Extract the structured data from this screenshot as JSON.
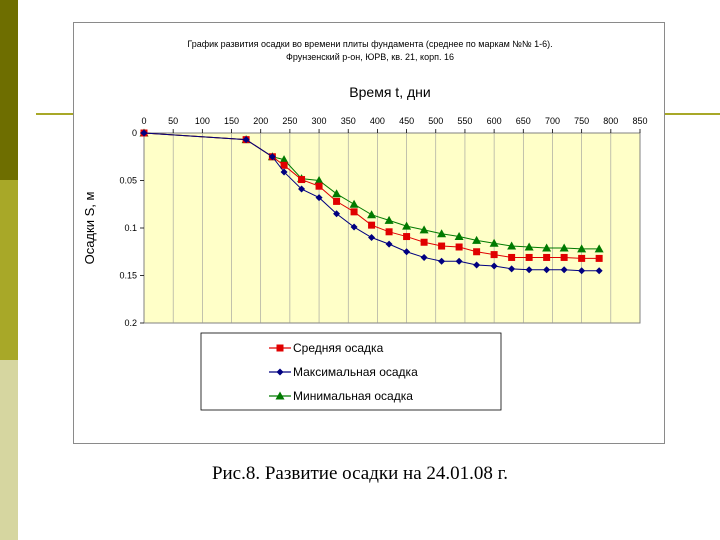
{
  "slide": {
    "caption": "Рис.8. Развитие осадки на 24.01.08 г.",
    "side_colors": [
      "#6e6e00",
      "#a8a828",
      "#d6d6a0",
      "#a8a828"
    ]
  },
  "chart_data": {
    "type": "line",
    "title_line1": "График развития осадки во времени плиты фундамента (среднее по маркам №№ 1-6).",
    "title_line2": "Фрунзенский р-он, ЮРВ, кв. 21, корп. 16",
    "xlabel": "Время t, дни",
    "ylabel": "Осадки S, м",
    "xlim": [
      0,
      850
    ],
    "ylim": [
      0,
      0.2
    ],
    "x_ticks": [
      "0",
      "50",
      "100",
      "150",
      "200",
      "250",
      "300",
      "350",
      "400",
      "450",
      "500",
      "550",
      "600",
      "650",
      "700",
      "750",
      "800",
      "850"
    ],
    "y_ticks": [
      "0",
      "0.05",
      "0.1",
      "0.15",
      "0.2"
    ],
    "y_inverted": true,
    "x_axis_position": "top",
    "plot_background": "#ffffc8",
    "grid": "vertical",
    "legend_position": "bottom",
    "series": [
      {
        "name": "Средняя осадка",
        "color": "#e00000",
        "marker": "square",
        "points": [
          [
            0,
            0
          ],
          [
            175,
            0.007
          ],
          [
            220,
            0.025
          ],
          [
            240,
            0.034
          ],
          [
            270,
            0.049
          ],
          [
            300,
            0.056
          ],
          [
            330,
            0.072
          ],
          [
            360,
            0.083
          ],
          [
            390,
            0.097
          ],
          [
            420,
            0.104
          ],
          [
            450,
            0.109
          ],
          [
            480,
            0.115
          ],
          [
            510,
            0.119
          ],
          [
            540,
            0.12
          ],
          [
            570,
            0.125
          ],
          [
            600,
            0.128
          ],
          [
            630,
            0.131
          ],
          [
            660,
            0.131
          ],
          [
            690,
            0.131
          ],
          [
            720,
            0.131
          ],
          [
            750,
            0.132
          ],
          [
            780,
            0.132
          ]
        ]
      },
      {
        "name": "Максимальная осадка",
        "color": "#000080",
        "marker": "diamond",
        "points": [
          [
            0,
            0
          ],
          [
            175,
            0.007
          ],
          [
            220,
            0.025
          ],
          [
            240,
            0.041
          ],
          [
            270,
            0.059
          ],
          [
            300,
            0.068
          ],
          [
            330,
            0.085
          ],
          [
            360,
            0.099
          ],
          [
            390,
            0.11
          ],
          [
            420,
            0.117
          ],
          [
            450,
            0.125
          ],
          [
            480,
            0.131
          ],
          [
            510,
            0.135
          ],
          [
            540,
            0.135
          ],
          [
            570,
            0.139
          ],
          [
            600,
            0.14
          ],
          [
            630,
            0.143
          ],
          [
            660,
            0.144
          ],
          [
            690,
            0.144
          ],
          [
            720,
            0.144
          ],
          [
            750,
            0.145
          ],
          [
            780,
            0.145
          ]
        ]
      },
      {
        "name": "Минимальная осадка",
        "color": "#007a00",
        "marker": "triangle",
        "points": [
          [
            0,
            0
          ],
          [
            175,
            0.007
          ],
          [
            220,
            0.025
          ],
          [
            240,
            0.028
          ],
          [
            270,
            0.048
          ],
          [
            300,
            0.05
          ],
          [
            330,
            0.064
          ],
          [
            360,
            0.075
          ],
          [
            390,
            0.086
          ],
          [
            420,
            0.092
          ],
          [
            450,
            0.098
          ],
          [
            480,
            0.102
          ],
          [
            510,
            0.106
          ],
          [
            540,
            0.109
          ],
          [
            570,
            0.113
          ],
          [
            600,
            0.116
          ],
          [
            630,
            0.119
          ],
          [
            660,
            0.12
          ],
          [
            690,
            0.121
          ],
          [
            720,
            0.121
          ],
          [
            750,
            0.122
          ],
          [
            780,
            0.122
          ]
        ]
      }
    ]
  }
}
